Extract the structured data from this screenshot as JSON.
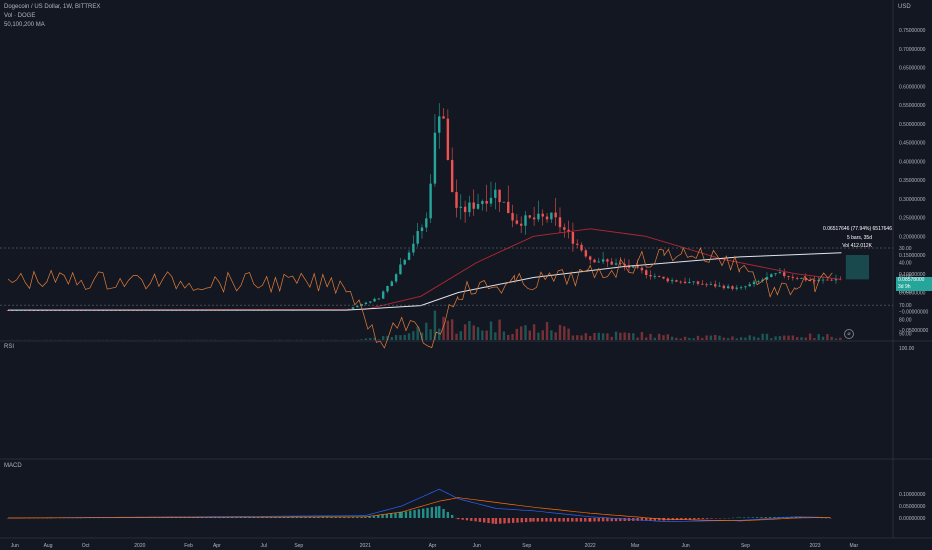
{
  "header": {
    "title": "Dogecoin / US Dollar, 1W, BITTREX",
    "volume": "Vol · DOGE",
    "ma": "50,100,200 MA"
  },
  "currency": "USD",
  "measure": {
    "line1": "0.06517646 (77.94%) 6517646",
    "line2": "5 bars, 35d",
    "line3": "Vol 412.012K"
  },
  "price_badge": {
    "price": "0.08578000",
    "time": "3d 9h"
  },
  "rsi_label": "RSI",
  "macd_label": "MACD",
  "log_button": "⌀",
  "colors": {
    "background": "#131722",
    "up": "#26a69a",
    "down": "#ef5350",
    "ma_white": "#e0e3eb",
    "ma_red": "#b22833",
    "rsi_line": "#e57e3a",
    "rsi_band": "#3b2a63",
    "macd_line": "#2962ff",
    "signal_line": "#ff6d00"
  },
  "chart_data": [
    {
      "type": "candlestick",
      "title": "Dogecoin / US Dollar, 1W, BITTREX",
      "y_ticks": [
        "0.75000000",
        "0.70000000",
        "0.65000000",
        "0.60000000",
        "0.55000000",
        "0.50000000",
        "0.45000000",
        "0.40000000",
        "0.35000000",
        "0.30000000",
        "0.25000000",
        "0.20000000",
        "0.15000000",
        "0.10000000",
        "0.05000000",
        "−0.00000000",
        "−0.05000000"
      ],
      "ylim": [
        -0.05,
        0.75
      ],
      "x_ticks": [
        "Jun",
        "Aug",
        "Oct",
        "2020",
        "Feb",
        "Apr",
        "Jul",
        "Sep",
        "2021",
        "Apr",
        "Jun",
        "Sep",
        "2022",
        "Mar",
        "Jun",
        "Sep",
        "2023",
        "Mar"
      ],
      "key_closes": [
        {
          "date": "2019-06",
          "close": 0.003
        },
        {
          "date": "2020-12",
          "close": 0.004
        },
        {
          "date": "2021-01-25",
          "close": 0.037
        },
        {
          "date": "2021-02-01",
          "close": 0.058
        },
        {
          "date": "2021-02-08",
          "close": 0.07
        },
        {
          "date": "2021-04-12",
          "close": 0.25
        },
        {
          "date": "2021-04-19",
          "close": 0.4
        },
        {
          "date": "2021-05-03",
          "close": 0.57
        },
        {
          "date": "2021-05-10",
          "close": 0.5
        },
        {
          "date": "2021-05-17",
          "close": 0.35
        },
        {
          "date": "2021-06",
          "close": 0.26
        },
        {
          "date": "2021-08",
          "close": 0.32
        },
        {
          "date": "2021-09",
          "close": 0.24
        },
        {
          "date": "2021-11",
          "close": 0.25
        },
        {
          "date": "2022-01",
          "close": 0.14
        },
        {
          "date": "2022-03",
          "close": 0.12
        },
        {
          "date": "2022-05",
          "close": 0.085
        },
        {
          "date": "2022-09",
          "close": 0.06
        },
        {
          "date": "2022-11",
          "close": 0.1
        },
        {
          "date": "2023-01",
          "close": 0.08
        },
        {
          "date": "2023-02",
          "close": 0.086
        }
      ],
      "ma_200_last": 0.156,
      "ma_100_last": 0.085
    },
    {
      "type": "line",
      "title": "RSI",
      "y_ticks": [
        "100.00",
        "90.00",
        "80.00",
        "70.00",
        "60.00",
        "50.00",
        "40.00",
        "30.00"
      ],
      "ylim": [
        30,
        100
      ],
      "band": [
        30,
        70
      ],
      "x": [
        "2019-06",
        "2020-12",
        "2021-01-25",
        "2021-02-08",
        "2021-02-22",
        "2021-04-19",
        "2021-05-03",
        "2021-06",
        "2021-09",
        "2022-01",
        "2022-05",
        "2022-06",
        "2022-09",
        "2022-11",
        "2022-12",
        "2023-01",
        "2023-02"
      ],
      "values": [
        52,
        55,
        94,
        98,
        80,
        97,
        85,
        60,
        55,
        49,
        35,
        32,
        41,
        63,
        56,
        56,
        52
      ]
    },
    {
      "type": "line",
      "title": "MACD",
      "y_ticks": [
        "0.10000000",
        "0.05000000",
        "0.00000000"
      ],
      "ylim": [
        -0.015,
        0.12
      ],
      "x": [
        "2019-06",
        "2021-01",
        "2021-03",
        "2021-05",
        "2021-06",
        "2021-08",
        "2021-10",
        "2022-01",
        "2022-05",
        "2022-09",
        "2022-12",
        "2023-02"
      ],
      "macd": [
        0,
        0.01,
        0.05,
        0.12,
        0.08,
        0.04,
        0.03,
        0.005,
        -0.015,
        -0.01,
        0.005,
        0.002
      ],
      "signal": [
        0,
        0.005,
        0.025,
        0.07,
        0.085,
        0.065,
        0.045,
        0.02,
        -0.005,
        -0.012,
        0.0,
        0.003
      ]
    }
  ]
}
